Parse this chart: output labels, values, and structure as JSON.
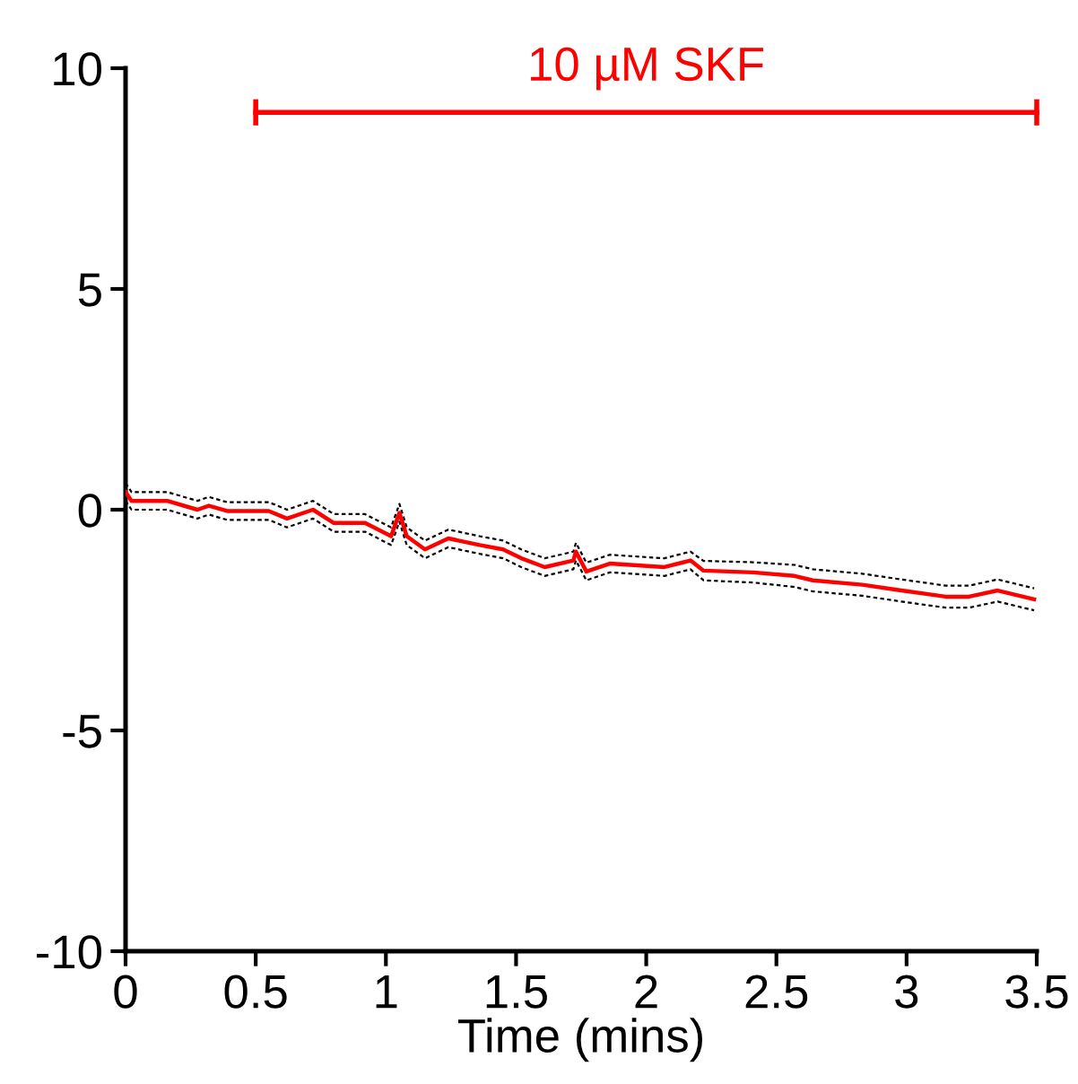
{
  "chart_data": {
    "type": "line",
    "xlabel": "Time (mins)",
    "x": [
      0,
      0.023,
      0.16,
      0.276,
      0.32,
      0.39,
      0.55,
      0.62,
      0.72,
      0.8,
      0.92,
      1.02,
      1.052,
      1.08,
      1.15,
      1.24,
      1.36,
      1.45,
      1.52,
      1.61,
      1.72,
      1.73,
      1.77,
      1.86,
      2.07,
      2.17,
      2.22,
      2.41,
      2.57,
      2.64,
      2.83,
      2.98,
      3.15,
      3.24,
      3.35,
      3.49
    ],
    "series": [
      {
        "color": "#000000",
        "line_style": "dashed",
        "values": [
          0.6,
          0.4,
          0.4,
          0.2,
          0.29,
          0.17,
          0.17,
          0,
          0.2,
          -0.1,
          -0.1,
          -0.4,
          0.13,
          -0.4,
          -0.7,
          -0.45,
          -0.6,
          -0.7,
          -0.9,
          -1.1,
          -0.95,
          -0.75,
          -1.2,
          -1.02,
          -1.1,
          -0.95,
          -1.16,
          -1.19,
          -1.25,
          -1.35,
          -1.45,
          -1.58,
          -1.72,
          -1.72,
          -1.58,
          -1.78
        ]
      },
      {
        "color": "#000000",
        "line_style": "dashed",
        "values": [
          0.2,
          0,
          0,
          -0.2,
          -0.11,
          -0.23,
          -0.23,
          -0.4,
          -0.2,
          -0.5,
          -0.5,
          -0.8,
          -0.27,
          -0.8,
          -1.1,
          -0.85,
          -1.0,
          -1.1,
          -1.3,
          -1.5,
          -1.35,
          -1.15,
          -1.6,
          -1.42,
          -1.5,
          -1.35,
          -1.6,
          -1.65,
          -1.75,
          -1.85,
          -1.95,
          -2.08,
          -2.22,
          -2.22,
          -2.08,
          -2.28
        ]
      },
      {
        "color": "#ff0000",
        "values": [
          0.4,
          0.2,
          0.2,
          0,
          0.09,
          -0.03,
          -0.03,
          -0.2,
          0,
          -0.3,
          -0.3,
          -0.6,
          -0.07,
          -0.6,
          -0.9,
          -0.65,
          -0.8,
          -0.9,
          -1.1,
          -1.3,
          -1.15,
          -0.95,
          -1.4,
          -1.22,
          -1.3,
          -1.15,
          -1.38,
          -1.42,
          -1.5,
          -1.6,
          -1.7,
          -1.83,
          -1.97,
          -1.97,
          -1.83,
          -2.03
        ]
      },
      {
        "name": "10 µM SKF",
        "color": "#ff0000",
        "x": [
          0.5,
          3.5
        ],
        "values": [
          9,
          9
        ]
      }
    ],
    "xlim": [
      0,
      3.5
    ],
    "ylim": [
      -10,
      10
    ],
    "xticks": [
      0,
      0.5,
      1,
      1.5,
      2,
      2.5,
      3,
      3.5
    ],
    "yticks": [
      -10,
      -5,
      0,
      5,
      10
    ],
    "marker": "none",
    "line_style": "solid"
  }
}
